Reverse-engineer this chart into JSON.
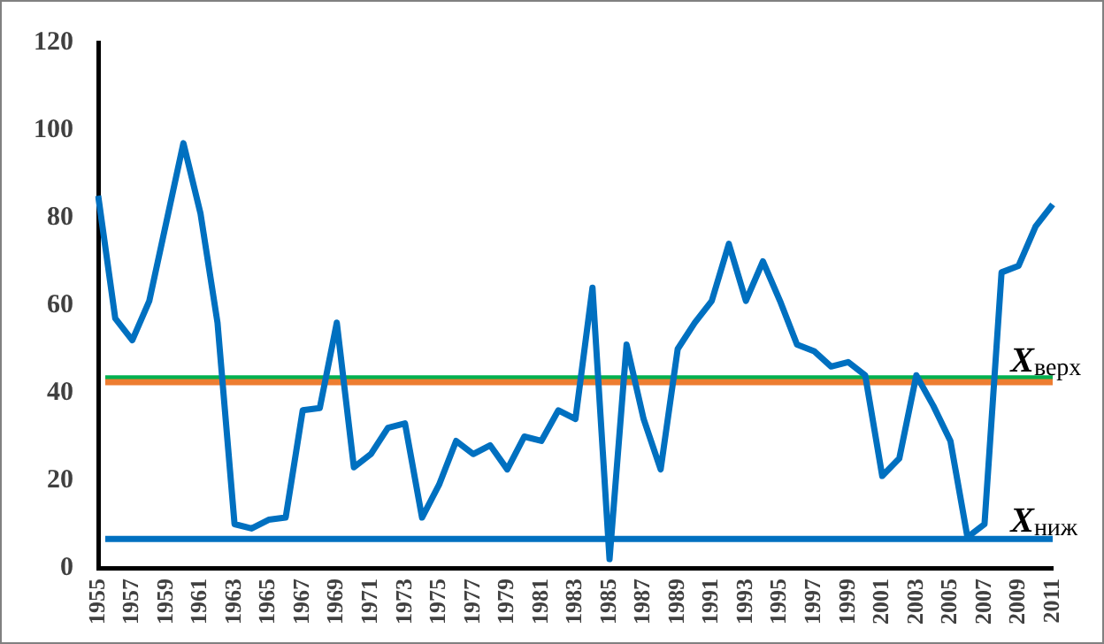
{
  "chart_data": {
    "type": "line",
    "categories": [
      "1955",
      null,
      "1957",
      null,
      "1959",
      null,
      "1961",
      null,
      "1963",
      null,
      "1965",
      null,
      "1967",
      null,
      "1969",
      null,
      "1971",
      null,
      "1973",
      null,
      "1975",
      null,
      "1977",
      null,
      "1979",
      null,
      "1981",
      null,
      "1983",
      null,
      "1985",
      null,
      "1987",
      null,
      "1989",
      null,
      "1991",
      null,
      "1993",
      null,
      "1995",
      null,
      "1997",
      null,
      "1999",
      null,
      "2001",
      null,
      "2003",
      null,
      "2005",
      null,
      "2007",
      null,
      "2009",
      null,
      "2011"
    ],
    "series": [
      {
        "color": "#0070c0",
        "values": [
          85,
          57,
          52,
          61,
          79,
          97,
          81,
          56,
          10,
          9,
          11,
          11.5,
          36,
          36.5,
          56,
          23,
          26,
          32,
          33,
          11.5,
          19,
          29,
          26,
          28,
          22.5,
          30,
          29,
          36,
          34,
          64,
          2,
          51,
          34,
          22.5,
          50,
          56,
          61,
          74,
          61,
          70,
          61,
          51,
          49.5,
          46,
          47,
          44,
          21,
          25,
          44,
          37,
          29,
          7,
          10,
          67.5,
          69,
          78,
          83
        ]
      }
    ],
    "ylim": [
      0,
      120
    ],
    "yticks": [
      0,
      20,
      40,
      60,
      80,
      100,
      120
    ],
    "grid": false,
    "legend": false,
    "marker": "none",
    "line_style": "solid",
    "ref_lines": [
      {
        "axis": "y",
        "value": 43.3,
        "label": "X$_{верх}$",
        "color": "#00b050"
      },
      {
        "axis": "y",
        "value": 42.4,
        "label": null,
        "color": "#ed7d31"
      },
      {
        "axis": "y",
        "value": 6.6,
        "label": "X$_{ниж}$",
        "color": "#0070c0"
      }
    ]
  }
}
